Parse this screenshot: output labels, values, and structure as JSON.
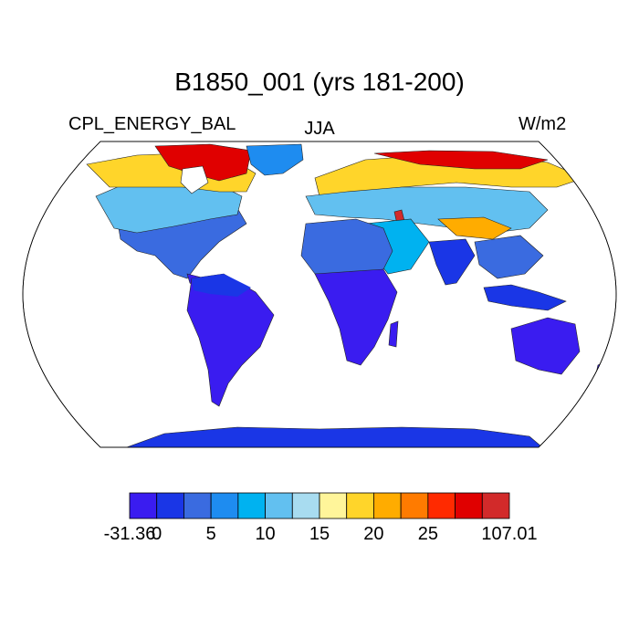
{
  "header": {
    "title": "B1850_001 (yrs 181-200)",
    "left_label": "CPL_ENERGY_BAL",
    "center_label": "JJA",
    "right_label": "W/m2"
  },
  "colorbar": {
    "colors": [
      "#3a1cf0",
      "#1a36e6",
      "#3a6be0",
      "#1e8cf0",
      "#00b2f0",
      "#62c0f0",
      "#a8dcf0",
      "#fff59a",
      "#ffd52a",
      "#ffac00",
      "#ff7b00",
      "#ff2a00",
      "#e00000",
      "#d22a2a"
    ],
    "labels": [
      {
        "text": "-31.36",
        "edge": 0
      },
      {
        "text": "0",
        "edge": 1
      },
      {
        "text": "5",
        "edge": 2
      },
      {
        "text": "10",
        "edge": 3
      },
      {
        "text": "15",
        "edge": 4
      },
      {
        "text": "20",
        "edge": 5
      },
      {
        "text": "25",
        "edge": 6
      },
      {
        "text": "107.01",
        "edge": 7
      }
    ]
  }
}
